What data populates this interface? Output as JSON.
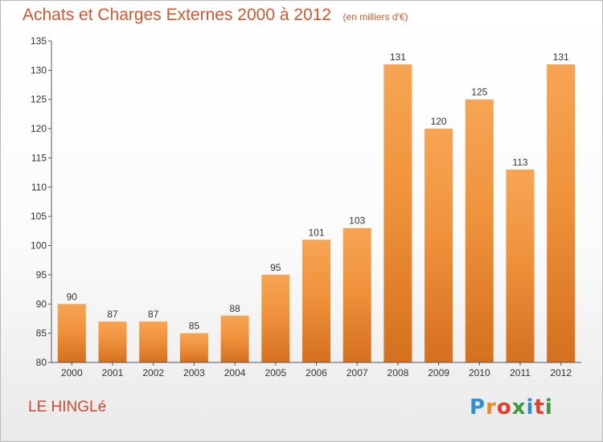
{
  "chart_data": {
    "type": "bar",
    "title": "Achats et Charges Externes 2000 à 2012",
    "unit": "(en milliers d'€)",
    "categories": [
      "2000",
      "2001",
      "2002",
      "2003",
      "2004",
      "2005",
      "2006",
      "2007",
      "2008",
      "2009",
      "2010",
      "2011",
      "2012"
    ],
    "values": [
      90,
      87,
      87,
      85,
      88,
      95,
      101,
      103,
      131,
      120,
      125,
      113,
      131
    ],
    "ylim": [
      80,
      135
    ],
    "yticks": [
      80,
      85,
      90,
      95,
      100,
      105,
      110,
      115,
      120,
      125,
      130,
      135
    ],
    "xlabel": "",
    "ylabel": "",
    "grid": false,
    "legend": "none",
    "bar_color": "#f0923c",
    "bar_color_light": "#f6a554",
    "bar_color_dark": "#d4701f"
  },
  "commune": "LE HINGLé",
  "brand": {
    "letters": [
      "P",
      "r",
      "o",
      "x",
      "i",
      "t",
      "i"
    ],
    "colors": [
      "#2e8fd3",
      "#f08a1c",
      "#e23d2f",
      "#3a9a3f",
      "#2e8fd3",
      "#e23d2f",
      "#3a9a3f"
    ]
  },
  "colors": {
    "title": "#d2582e",
    "commune": "#cf4a2e",
    "axis": "#555555",
    "tick_text": "#333333"
  }
}
